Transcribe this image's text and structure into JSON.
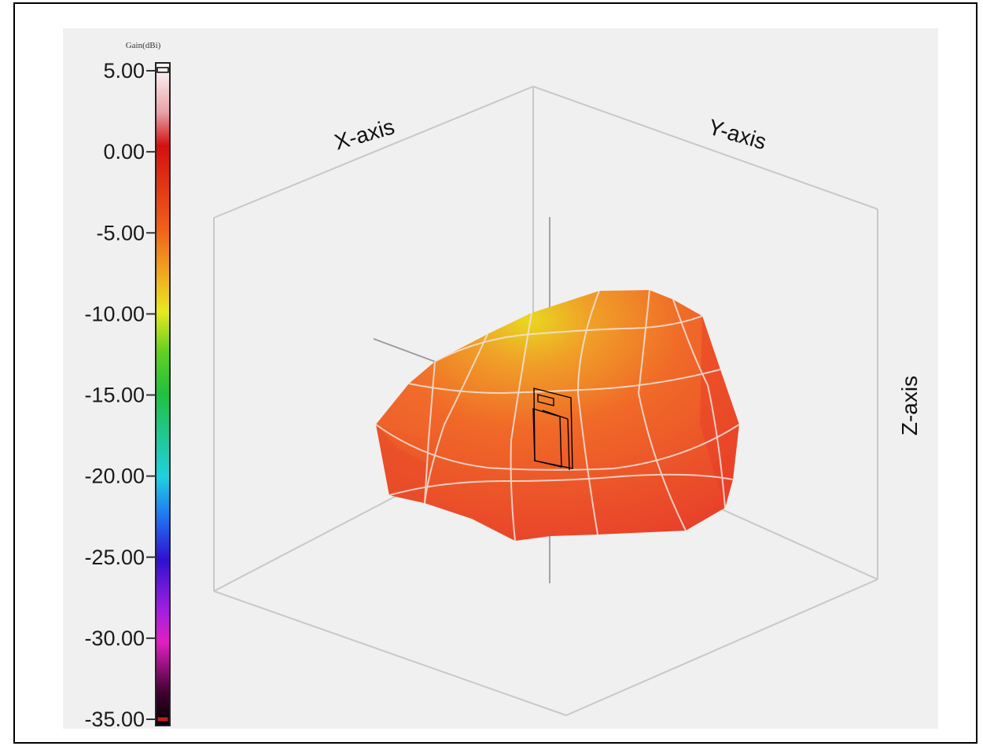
{
  "chart_data": {
    "type": "surface3d",
    "title": "",
    "colorbar": {
      "title": "Gain(dBi)",
      "min": -35,
      "max": 5,
      "ticks": [
        {
          "value": 5,
          "label": "5.00"
        },
        {
          "value": 0,
          "label": "0.00"
        },
        {
          "value": -5,
          "label": "-5.00"
        },
        {
          "value": -10,
          "label": "-10.00"
        },
        {
          "value": -15,
          "label": "-15.00"
        },
        {
          "value": -20,
          "label": "-20.00"
        },
        {
          "value": -25,
          "label": "-25.00"
        },
        {
          "value": -30,
          "label": "-30.00"
        },
        {
          "value": -35,
          "label": "-35.00"
        }
      ],
      "colormap": [
        {
          "value": 5,
          "color": "#ffffff"
        },
        {
          "value": 2,
          "color": "#e8a0a8"
        },
        {
          "value": 0,
          "color": "#d41010"
        },
        {
          "value": -5,
          "color": "#f06018"
        },
        {
          "value": -8,
          "color": "#f0b020"
        },
        {
          "value": -10,
          "color": "#e8e820"
        },
        {
          "value": -12.5,
          "color": "#60d020"
        },
        {
          "value": -15,
          "color": "#20c040"
        },
        {
          "value": -20,
          "color": "#20d0e0"
        },
        {
          "value": -22.5,
          "color": "#2070f0"
        },
        {
          "value": -25,
          "color": "#3010d0"
        },
        {
          "value": -28,
          "color": "#a020e0"
        },
        {
          "value": -30,
          "color": "#e020c0"
        },
        {
          "value": -33,
          "color": "#400030"
        },
        {
          "value": -35,
          "color": "#000000"
        }
      ]
    },
    "axes": {
      "x_label": "X-axis",
      "y_label": "Y-axis",
      "z_label": "Z-axis"
    },
    "surface": {
      "description_color_range_dbi": [
        -10,
        -3
      ],
      "dominant_color": "#f05a28",
      "peak_color": "#e8d020"
    },
    "grid": true
  },
  "colors": {
    "background": "#f0f0f0",
    "box_lines": "#c8c8c8",
    "mesh_lines": "#e8e0d8"
  }
}
